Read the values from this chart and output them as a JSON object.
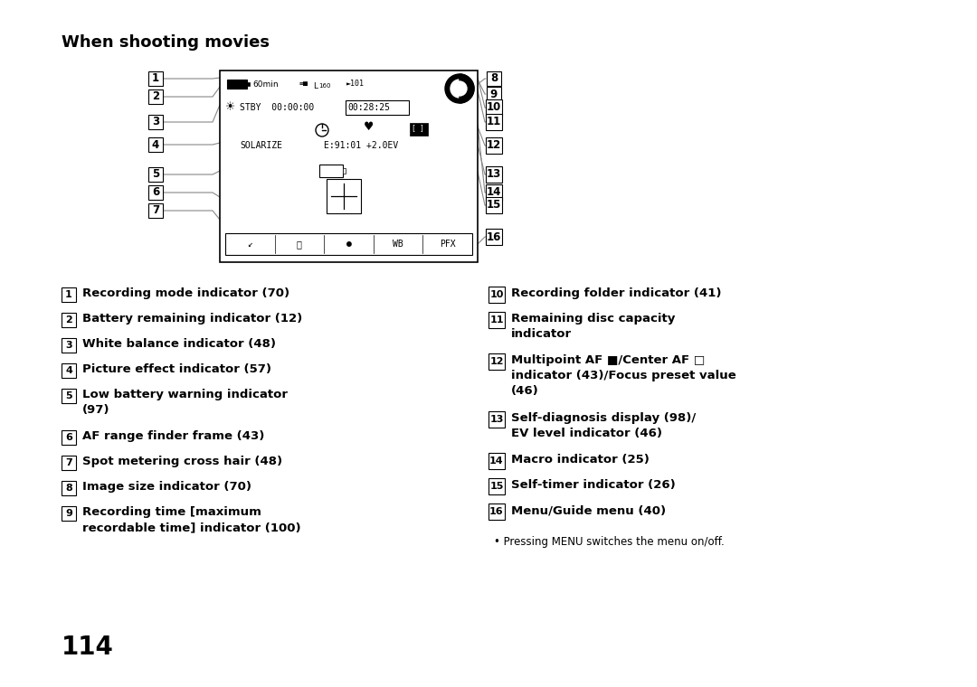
{
  "title": "When shooting movies",
  "background_color": "#ffffff",
  "page_number": "114",
  "left_items": [
    {
      "num": "1",
      "text": "Recording mode indicator (70)"
    },
    {
      "num": "2",
      "text": "Battery remaining indicator (12)"
    },
    {
      "num": "3",
      "text": "White balance indicator (48)"
    },
    {
      "num": "4",
      "text": "Picture effect indicator (57)"
    },
    {
      "num": "5",
      "text": "Low battery warning indicator\n(97)"
    },
    {
      "num": "6",
      "text": "AF range finder frame (43)"
    },
    {
      "num": "7",
      "text": "Spot metering cross hair (48)"
    },
    {
      "num": "8",
      "text": "Image size indicator (70)"
    },
    {
      "num": "9",
      "text": "Recording time [maximum\nrecordable time] indicator (100)"
    }
  ],
  "right_items": [
    {
      "num": "10",
      "text": "Recording folder indicator (41)"
    },
    {
      "num": "11",
      "text": "Remaining disc capacity\nindicator"
    },
    {
      "num": "12",
      "text": "Multipoint AF ■/Center AF □\nindicator (43)/Focus preset value\n(46)"
    },
    {
      "num": "13",
      "text": "Self-diagnosis display (98)/\nEV level indicator (46)"
    },
    {
      "num": "14",
      "text": "Macro indicator (25)"
    },
    {
      "num": "15",
      "text": "Self-timer indicator (26)"
    },
    {
      "num": "16",
      "text": "Menu/Guide menu (40)"
    }
  ],
  "note": "• Pressing MENU switches the menu on/off.",
  "left_nums_diagram": [
    "1",
    "2",
    "3",
    "4",
    "5",
    "6",
    "7"
  ],
  "right_nums_diagram": [
    "8",
    "9",
    "10",
    "11",
    "12",
    "13",
    "14",
    "15",
    "16"
  ]
}
